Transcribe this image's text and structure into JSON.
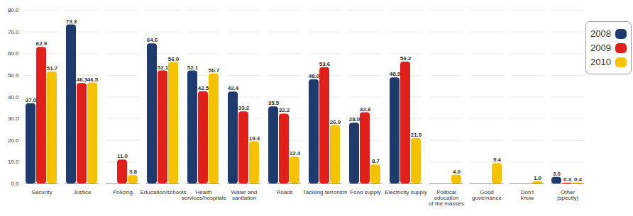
{
  "chart_data": {
    "type": "bar",
    "categories": [
      "Security",
      "Justice",
      "Policing",
      "Education/schools",
      "Health\nservices/hospitals",
      "Water and\nsanitation",
      "Roads",
      "Tackling terrorism",
      "Food supply",
      "Electricity supply",
      "Political\neducation\nof the masses",
      "Good\ngovernance",
      "Don't\nknow",
      "Other\n(specify)"
    ],
    "series": [
      {
        "name": "2008",
        "color": "#1f3b6e",
        "values": [
          37.0,
          73.3,
          null,
          64.6,
          52.1,
          42.4,
          35.5,
          48.0,
          28.0,
          48.9,
          null,
          null,
          null,
          3.0
        ],
        "value_labels": [
          "37.0",
          "73.3",
          null,
          "64.6",
          "52.1",
          "42.4",
          "35.5",
          "48.0",
          "28.0",
          "48.9",
          null,
          null,
          null,
          "3.0"
        ]
      },
      {
        "name": "2009",
        "color": "#e0201b",
        "values": [
          62.9,
          46.3,
          11.0,
          52.1,
          42.5,
          33.2,
          32.2,
          53.6,
          32.8,
          56.2,
          null,
          null,
          null,
          0.3
        ],
        "value_labels": [
          "62.9",
          "46.3",
          "11.0",
          "52.1",
          "42.5",
          "33.2",
          "32.2",
          "53.6",
          "32.8",
          "56.2",
          null,
          null,
          null,
          "0.3"
        ]
      },
      {
        "name": "2010",
        "color": "#f5c200",
        "values": [
          51.7,
          46.5,
          3.8,
          56.0,
          50.7,
          19.4,
          12.4,
          26.9,
          8.7,
          21.0,
          4.0,
          9.4,
          1.0,
          0.4
        ],
        "value_labels": [
          "51.7",
          "46.5",
          "3.8",
          "56.0",
          "50.7",
          "19.4",
          "12.4",
          "26.9",
          "8.7",
          "21.0",
          "4.0",
          "9.4",
          "1.0",
          "0.4"
        ]
      }
    ],
    "ylim": [
      0,
      80
    ],
    "yticks": [
      {
        "value": 0,
        "label": "0.0"
      },
      {
        "value": 10,
        "label": "10.0"
      },
      {
        "value": 20,
        "label": "20.0"
      },
      {
        "value": 30,
        "label": "30.0"
      },
      {
        "value": 40,
        "label": "40.0"
      },
      {
        "value": 50,
        "label": "50.0"
      },
      {
        "value": 60,
        "label": "60.0"
      },
      {
        "value": 70,
        "label": "70.0"
      },
      {
        "value": 80,
        "label": "80.0"
      }
    ],
    "grid": true,
    "data_labels": true,
    "legend": "top-right"
  }
}
